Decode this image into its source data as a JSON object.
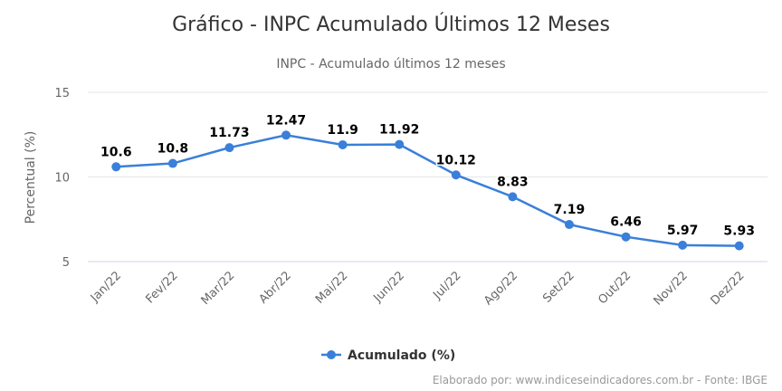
{
  "chart_data": {
    "type": "line",
    "title": "Gráfico - INPC Acumulado Últimos 12 Meses",
    "subtitle": "INPC - Acumulado últimos 12 meses",
    "xlabel": "",
    "ylabel": "Percentual (%)",
    "ylim": [
      5,
      15
    ],
    "yticks": [
      5,
      10,
      15
    ],
    "grid": true,
    "legend_placement": "bottom",
    "categories": [
      "Jan/22",
      "Fev/22",
      "Mar/22",
      "Abr/22",
      "Mai/22",
      "Jun/22",
      "Jul/22",
      "Ago/22",
      "Set/22",
      "Out/22",
      "Nov/22",
      "Dez/22"
    ],
    "series": [
      {
        "name": "Acumulado (%)",
        "color": "#3a7fd9",
        "values": [
          10.6,
          10.8,
          11.73,
          12.47,
          11.9,
          11.92,
          10.12,
          8.83,
          7.19,
          6.46,
          5.97,
          5.93
        ]
      }
    ],
    "credits": "Elaborado por: www.indiceseindicadores.com.br - Fonte: IBGE"
  }
}
